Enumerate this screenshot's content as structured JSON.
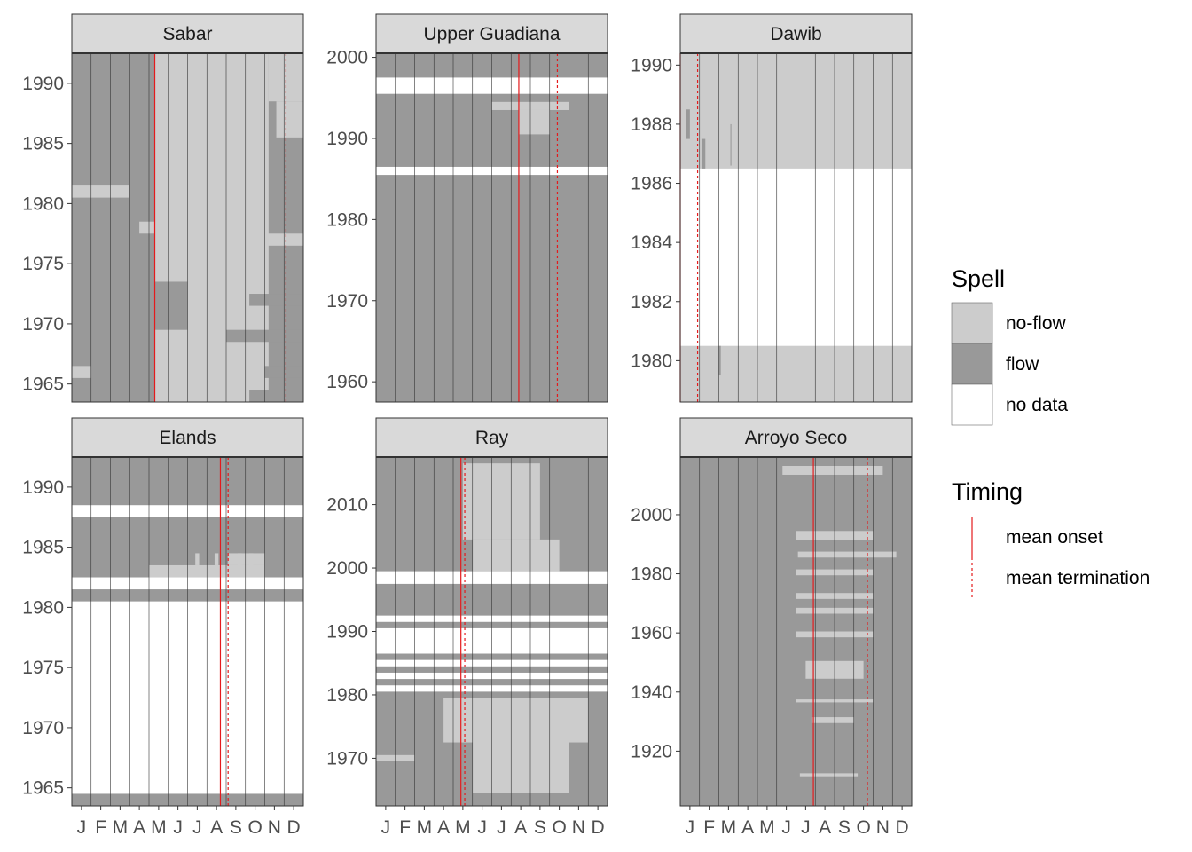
{
  "chart_data": {
    "type": "heatmap",
    "colors": {
      "noflow": "#cccccc",
      "flow": "#999999",
      "nodata": "#ffffff",
      "onset": "#e41a1c",
      "termination": "#e41a1c",
      "strip": "#d9d9d9",
      "grid": "#333333"
    },
    "x_tick_labels": [
      "J",
      "F",
      "M",
      "A",
      "M",
      "J",
      "J",
      "A",
      "S",
      "O",
      "N",
      "D"
    ],
    "legend": {
      "spell_title": "Spell",
      "spell_items": [
        {
          "key": "noflow",
          "label": "no-flow"
        },
        {
          "key": "flow",
          "label": "flow"
        },
        {
          "key": "nodata",
          "label": "no data"
        }
      ],
      "timing_title": "Timing",
      "timing_items": [
        {
          "key": "onset",
          "label": "mean onset"
        },
        {
          "key": "termination",
          "label": "mean termination"
        }
      ]
    },
    "panels": [
      {
        "title": "Sabar",
        "ylim": [
          1963.5,
          1992.5
        ],
        "yticks": [
          1965,
          1970,
          1975,
          1980,
          1985,
          1990
        ],
        "onset_month": 4.3,
        "termination_month": 11.1,
        "base": "flow",
        "spells": [
          {
            "y0": 1963.5,
            "y1": 1992.5,
            "m0": 4.3,
            "m1": 10.2,
            "s": "noflow"
          },
          {
            "y0": 1988.5,
            "y1": 1992.5,
            "m0": 10.2,
            "m1": 12.0,
            "s": "noflow"
          },
          {
            "y0": 1985.5,
            "y1": 1988.5,
            "m0": 10.6,
            "m1": 12.0,
            "s": "noflow"
          },
          {
            "y0": 1980.5,
            "y1": 1981.5,
            "m0": 0.0,
            "m1": 3.0,
            "s": "noflow"
          },
          {
            "y0": 1980.5,
            "y1": 1984.5,
            "m0": 4.3,
            "m1": 5.0,
            "s": "noflow"
          },
          {
            "y0": 1977.5,
            "y1": 1978.5,
            "m0": 3.5,
            "m1": 4.5,
            "s": "noflow"
          },
          {
            "y0": 1976.5,
            "y1": 1977.5,
            "m0": 10.0,
            "m1": 12.0,
            "s": "noflow"
          },
          {
            "y0": 1969.5,
            "y1": 1973.5,
            "m0": 4.3,
            "m1": 6.0,
            "s": "flow"
          },
          {
            "y0": 1968.5,
            "y1": 1969.5,
            "m0": 8.0,
            "m1": 12.0,
            "s": "flow"
          },
          {
            "y0": 1971.5,
            "y1": 1972.5,
            "m0": 9.2,
            "m1": 12.0,
            "s": "flow"
          },
          {
            "y0": 1965.5,
            "y1": 1966.5,
            "m0": 0.0,
            "m1": 1.0,
            "s": "noflow"
          },
          {
            "y0": 1963.5,
            "y1": 1964.5,
            "m0": 9.2,
            "m1": 12.0,
            "s": "flow"
          },
          {
            "y0": 1965.5,
            "y1": 1966.5,
            "m0": 10.0,
            "m1": 12.0,
            "s": "flow"
          }
        ]
      },
      {
        "title": "Upper Guadiana",
        "ylim": [
          1957.5,
          2000.5
        ],
        "yticks": [
          1960,
          1970,
          1980,
          1990,
          2000
        ],
        "onset_month": 7.4,
        "termination_month": 9.4,
        "base": "flow",
        "spells": [
          {
            "y0": 1995.5,
            "y1": 1997.5,
            "m0": 0.0,
            "m1": 12.0,
            "s": "nodata"
          },
          {
            "y0": 1985.5,
            "y1": 1986.5,
            "m0": 0.0,
            "m1": 12.0,
            "s": "nodata"
          },
          {
            "y0": 1993.5,
            "y1": 1994.5,
            "m0": 6.0,
            "m1": 10.0,
            "s": "noflow"
          },
          {
            "y0": 1990.5,
            "y1": 1993.5,
            "m0": 7.4,
            "m1": 9.0,
            "s": "noflow"
          }
        ]
      },
      {
        "title": "Dawib",
        "ylim": [
          1978.6,
          1990.4
        ],
        "yticks": [
          1980,
          1982,
          1984,
          1986,
          1988,
          1990
        ],
        "onset_month": 0.0,
        "termination_month": 0.9,
        "base": "noflow",
        "spells": [
          {
            "y0": 1980.5,
            "y1": 1986.5,
            "m0": 0.0,
            "m1": 12.0,
            "s": "nodata"
          },
          {
            "y0": 1987.5,
            "y1": 1988.5,
            "m0": 0.3,
            "m1": 0.5,
            "s": "flow"
          },
          {
            "y0": 1986.5,
            "y1": 1987.5,
            "m0": 1.1,
            "m1": 1.3,
            "s": "flow"
          },
          {
            "y0": 1979.5,
            "y1": 1980.5,
            "m0": 2.0,
            "m1": 2.1,
            "s": "flow"
          },
          {
            "y0": 1986.6,
            "y1": 1988.0,
            "m0": 2.6,
            "m1": 2.65,
            "s": "flow"
          }
        ]
      },
      {
        "title": "Elands",
        "ylim": [
          1963.5,
          1992.5
        ],
        "yticks": [
          1965,
          1970,
          1975,
          1980,
          1985,
          1990
        ],
        "onset_month": 7.7,
        "termination_month": 8.1,
        "base": "flow",
        "spells": [
          {
            "y0": 1987.5,
            "y1": 1988.5,
            "m0": 0.0,
            "m1": 12.0,
            "s": "nodata"
          },
          {
            "y0": 1981.5,
            "y1": 1982.5,
            "m0": 0.0,
            "m1": 12.0,
            "s": "nodata"
          },
          {
            "y0": 1964.5,
            "y1": 1980.5,
            "m0": 0.0,
            "m1": 12.0,
            "s": "nodata"
          },
          {
            "y0": 1983.5,
            "y1": 1984.5,
            "m0": 8.1,
            "m1": 10.0,
            "s": "noflow"
          },
          {
            "y0": 1982.5,
            "y1": 1983.5,
            "m0": 4.0,
            "m1": 10.0,
            "s": "noflow"
          },
          {
            "y0": 1983.5,
            "y1": 1984.5,
            "m0": 7.4,
            "m1": 7.6,
            "s": "noflow"
          },
          {
            "y0": 1983.5,
            "y1": 1984.5,
            "m0": 6.4,
            "m1": 6.6,
            "s": "noflow"
          },
          {
            "y0": 1983.5,
            "y1": 1984.5,
            "m0": 8.6,
            "m1": 8.8,
            "s": "noflow"
          },
          {
            "y0": 1983.5,
            "y1": 1984.5,
            "m0": 9.2,
            "m1": 9.4,
            "s": "noflow"
          }
        ]
      },
      {
        "title": "Ray",
        "ylim": [
          1962.5,
          2017.5
        ],
        "yticks": [
          1970,
          1980,
          1990,
          2000,
          2010
        ],
        "onset_month": 4.4,
        "termination_month": 4.6,
        "base": "flow",
        "spells": [
          {
            "y0": 1997.5,
            "y1": 1999.5,
            "m0": 0.0,
            "m1": 12.0,
            "s": "nodata"
          },
          {
            "y0": 1991.5,
            "y1": 1992.5,
            "m0": 0.0,
            "m1": 12.0,
            "s": "nodata"
          },
          {
            "y0": 1986.5,
            "y1": 1990.5,
            "m0": 0.0,
            "m1": 12.0,
            "s": "nodata"
          },
          {
            "y0": 1984.5,
            "y1": 1985.5,
            "m0": 0.0,
            "m1": 12.0,
            "s": "nodata"
          },
          {
            "y0": 1982.5,
            "y1": 1983.5,
            "m0": 0.0,
            "m1": 12.0,
            "s": "nodata"
          },
          {
            "y0": 1980.5,
            "y1": 1981.5,
            "m0": 0.0,
            "m1": 12.0,
            "s": "nodata"
          },
          {
            "y0": 1999.5,
            "y1": 2004.5,
            "m0": 5.0,
            "m1": 9.5,
            "s": "noflow"
          },
          {
            "y0": 2004.5,
            "y1": 2016.5,
            "m0": 4.5,
            "m1": 8.5,
            "s": "noflow"
          },
          {
            "y0": 1964.5,
            "y1": 1979.5,
            "m0": 5.0,
            "m1": 10.0,
            "s": "noflow"
          },
          {
            "y0": 1972.5,
            "y1": 1979.5,
            "m0": 3.5,
            "m1": 11.0,
            "s": "noflow"
          },
          {
            "y0": 1969.5,
            "y1": 1970.5,
            "m0": 0.0,
            "m1": 2.0,
            "s": "noflow"
          }
        ]
      },
      {
        "title": "Arroyo Seco",
        "ylim": [
          1901.5,
          2019.5
        ],
        "yticks": [
          1920,
          1940,
          1960,
          1980,
          2000
        ],
        "onset_month": 6.9,
        "termination_month": 9.7,
        "base": "flow",
        "spells": [
          {
            "y0": 2013.5,
            "y1": 2016.5,
            "m0": 5.3,
            "m1": 10.5,
            "s": "noflow"
          },
          {
            "y0": 1991.5,
            "y1": 1994.5,
            "m0": 6.0,
            "m1": 10.0,
            "s": "noflow"
          },
          {
            "y0": 1985.5,
            "y1": 1987.5,
            "m0": 6.1,
            "m1": 11.2,
            "s": "noflow"
          },
          {
            "y0": 1979.5,
            "y1": 1981.5,
            "m0": 6.0,
            "m1": 10.0,
            "s": "noflow"
          },
          {
            "y0": 1971.5,
            "y1": 1973.5,
            "m0": 6.0,
            "m1": 10.0,
            "s": "noflow"
          },
          {
            "y0": 1966.5,
            "y1": 1968.5,
            "m0": 6.0,
            "m1": 10.0,
            "s": "noflow"
          },
          {
            "y0": 1958.5,
            "y1": 1960.5,
            "m0": 6.0,
            "m1": 10.0,
            "s": "noflow"
          },
          {
            "y0": 1944.5,
            "y1": 1950.5,
            "m0": 6.5,
            "m1": 9.5,
            "s": "noflow"
          },
          {
            "y0": 1936.5,
            "y1": 1937.5,
            "m0": 6.0,
            "m1": 10.0,
            "s": "noflow"
          },
          {
            "y0": 1929.5,
            "y1": 1931.5,
            "m0": 6.8,
            "m1": 9.0,
            "s": "noflow"
          },
          {
            "y0": 1911.5,
            "y1": 1912.5,
            "m0": 6.2,
            "m1": 9.2,
            "s": "noflow"
          }
        ]
      }
    ]
  }
}
